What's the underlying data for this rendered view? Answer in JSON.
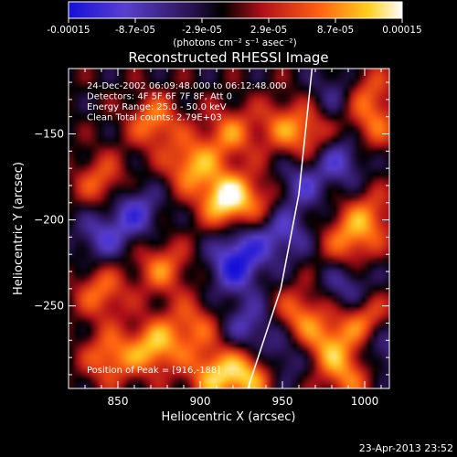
{
  "chart_data": {
    "type": "heatmap",
    "title": "Reconstructed RHESSI Image",
    "xlabel": "Heliocentric X (arcsec)",
    "ylabel": "Heliocentric Y (arcsec)",
    "xlim": [
      820,
      1015
    ],
    "ylim": [
      -298,
      -112
    ],
    "x_ticks": [
      850,
      900,
      950,
      1000
    ],
    "y_ticks": [
      -150,
      -200,
      -250
    ],
    "colorbar": {
      "range": [
        -0.00015,
        0.00015
      ],
      "tick_labels": [
        "-0.00015",
        "-8.7e-05",
        "-2.9e-05",
        "2.9e-05",
        "8.7e-05",
        "0.00015"
      ],
      "units": "(photons cm⁻² s⁻¹ asec⁻²)",
      "colors": [
        "#1410d8",
        "#5a3fd0",
        "#2a1250",
        "#000000",
        "#b0101a",
        "#ff6010",
        "#ffd020",
        "#ffffff"
      ]
    },
    "annotations": [
      "24-Dec-2002 06:09:48.000 to 06:12:48.000",
      "Detectors: 4F 5F 6F 7F 8F, Att 0",
      "Energy Range: 25.0 - 50.0 keV",
      "Clean    Total counts: 2.79E+03"
    ],
    "peak_label": "Position of Peak = [916,-188]",
    "peak": [
      916,
      -188
    ],
    "limb_points": [
      [
        929,
        -298
      ],
      [
        949,
        -240
      ],
      [
        960,
        -185
      ],
      [
        968,
        -112
      ]
    ],
    "sources": [
      {
        "x": 916,
        "y": -188,
        "a": 1.0
      },
      {
        "x": 895,
        "y": -168,
        "a": 0.7
      },
      {
        "x": 872,
        "y": -143,
        "a": 0.6
      },
      {
        "x": 840,
        "y": -178,
        "a": 0.5
      },
      {
        "x": 877,
        "y": -228,
        "a": 0.55
      },
      {
        "x": 840,
        "y": -242,
        "a": 0.55
      },
      {
        "x": 845,
        "y": -280,
        "a": 0.6
      },
      {
        "x": 872,
        "y": -274,
        "a": 0.75
      },
      {
        "x": 895,
        "y": -262,
        "a": 0.5
      },
      {
        "x": 908,
        "y": -290,
        "a": 0.7
      },
      {
        "x": 930,
        "y": -290,
        "a": 0.75
      },
      {
        "x": 960,
        "y": -255,
        "a": 0.55
      },
      {
        "x": 978,
        "y": -272,
        "a": 0.6
      },
      {
        "x": 1000,
        "y": -258,
        "a": 0.6
      },
      {
        "x": 990,
        "y": -290,
        "a": 0.55
      },
      {
        "x": 938,
        "y": -188,
        "a": 0.35
      },
      {
        "x": 990,
        "y": -212,
        "a": 0.55
      },
      {
        "x": 1003,
        "y": -198,
        "a": 0.5
      },
      {
        "x": 965,
        "y": -150,
        "a": 0.5
      },
      {
        "x": 948,
        "y": -145,
        "a": 0.4
      },
      {
        "x": 1005,
        "y": -145,
        "a": 0.45
      },
      {
        "x": 1000,
        "y": -125,
        "a": 0.5
      },
      {
        "x": 918,
        "y": -150,
        "a": 0.55
      },
      {
        "x": 920,
        "y": -230,
        "a": -0.45
      },
      {
        "x": 860,
        "y": -195,
        "a": -0.55
      },
      {
        "x": 925,
        "y": -218,
        "a": -0.5
      },
      {
        "x": 950,
        "y": -208,
        "a": -0.5
      },
      {
        "x": 840,
        "y": -210,
        "a": -0.45
      },
      {
        "x": 985,
        "y": -165,
        "a": -0.5
      },
      {
        "x": 960,
        "y": -180,
        "a": -0.45
      },
      {
        "x": 990,
        "y": -240,
        "a": -0.45
      },
      {
        "x": 950,
        "y": -280,
        "a": -0.4
      },
      {
        "x": 1010,
        "y": -275,
        "a": -0.45
      },
      {
        "x": 985,
        "y": -125,
        "a": -0.4
      },
      {
        "x": 930,
        "y": -262,
        "a": -0.45
      }
    ]
  },
  "footer_timestamp": "23-Apr-2013 23:52"
}
